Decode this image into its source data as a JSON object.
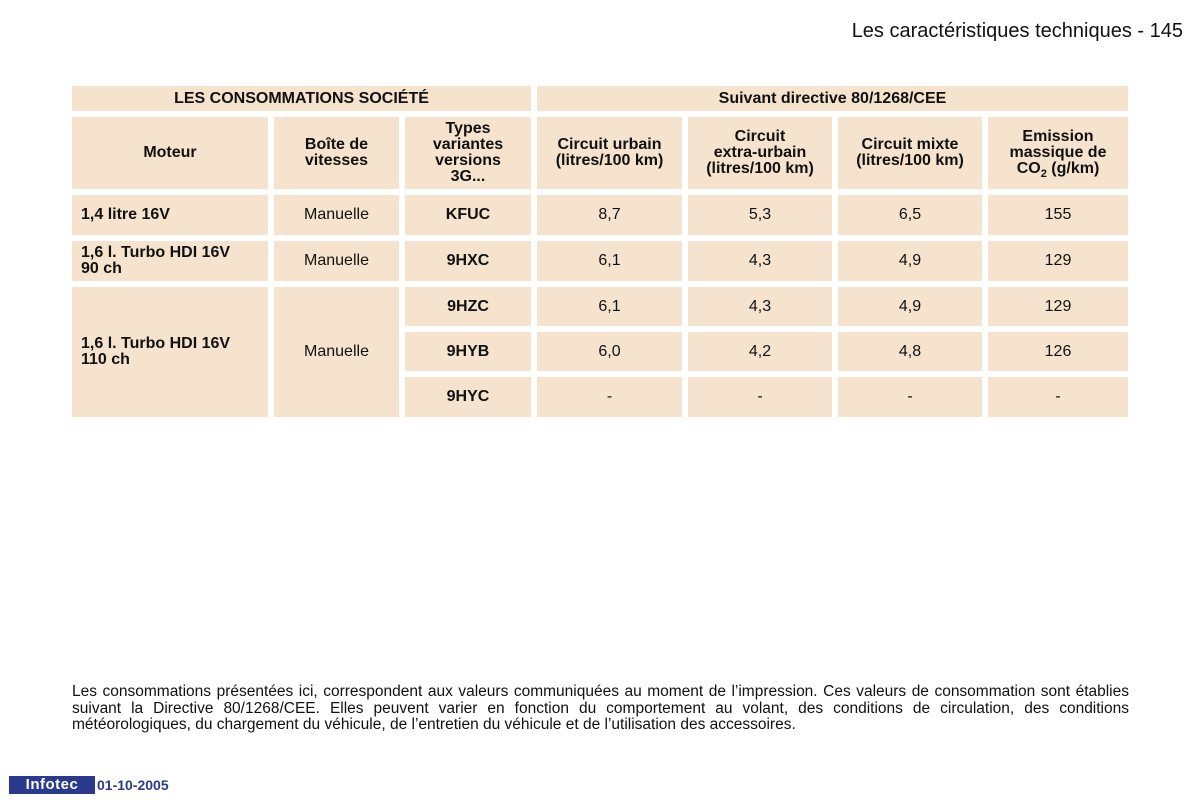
{
  "header": {
    "title": "Les caractéristiques techniques - 145"
  },
  "table": {
    "group_headers": {
      "left": "LES CONSOMMATIONS SOCIÉTÉ",
      "right": "Suivant directive 80/1268/CEE"
    },
    "columns": {
      "moteur": "Moteur",
      "boite": "Boîte de\nvitesses",
      "types": "Types\nvariantes\nversions\n3G...",
      "urbain": "Circuit urbain\n(litres/100 km)",
      "extra": "Circuit\nextra-urbain\n(litres/100 km)",
      "mixte": "Circuit mixte\n(litres/100 km)",
      "emission_line1": "Emission\nmassique de",
      "emission_co": "CO",
      "emission_sub": "2",
      "emission_unit": "(g/km)"
    },
    "rows": [
      {
        "moteur": "1,4 litre 16V",
        "boite": "Manuelle",
        "type": "KFUC",
        "urbain": "8,7",
        "extra": "5,3",
        "mixte": "6,5",
        "co2": "155"
      },
      {
        "moteur": "1,6 l. Turbo HDI 16V\n90 ch",
        "boite": "Manuelle",
        "type": "9HXC",
        "urbain": "6,1",
        "extra": "4,3",
        "mixte": "4,9",
        "co2": "129"
      },
      {
        "moteur": "1,6 l. Turbo HDI 16V\n110 ch",
        "boite": "Manuelle",
        "type": "9HZC",
        "urbain": "6,1",
        "extra": "4,3",
        "mixte": "4,9",
        "co2": "129"
      },
      {
        "type": "9HYB",
        "urbain": "6,0",
        "extra": "4,2",
        "mixte": "4,8",
        "co2": "126"
      },
      {
        "type": "9HYC",
        "urbain": "-",
        "extra": "-",
        "mixte": "-",
        "co2": "-"
      }
    ]
  },
  "footnote": "Les consommations présentées ici, correspondent aux valeurs communiquées au moment de l’impression. Ces valeurs de consommation sont établies suivant la Directive 80/1268/CEE. Elles peuvent varier en fonction du comportement au volant, des conditions de circulation, des conditions météorologiques, du chargement du véhicule, de l’entretien du véhicule et de l’utilisation des accessoires.",
  "footer": {
    "logo_text": "Infotec",
    "date": "01-10-2005"
  },
  "colors": {
    "cell_background": "#f6e3cd",
    "logo_blue": "#2b3a8c"
  }
}
